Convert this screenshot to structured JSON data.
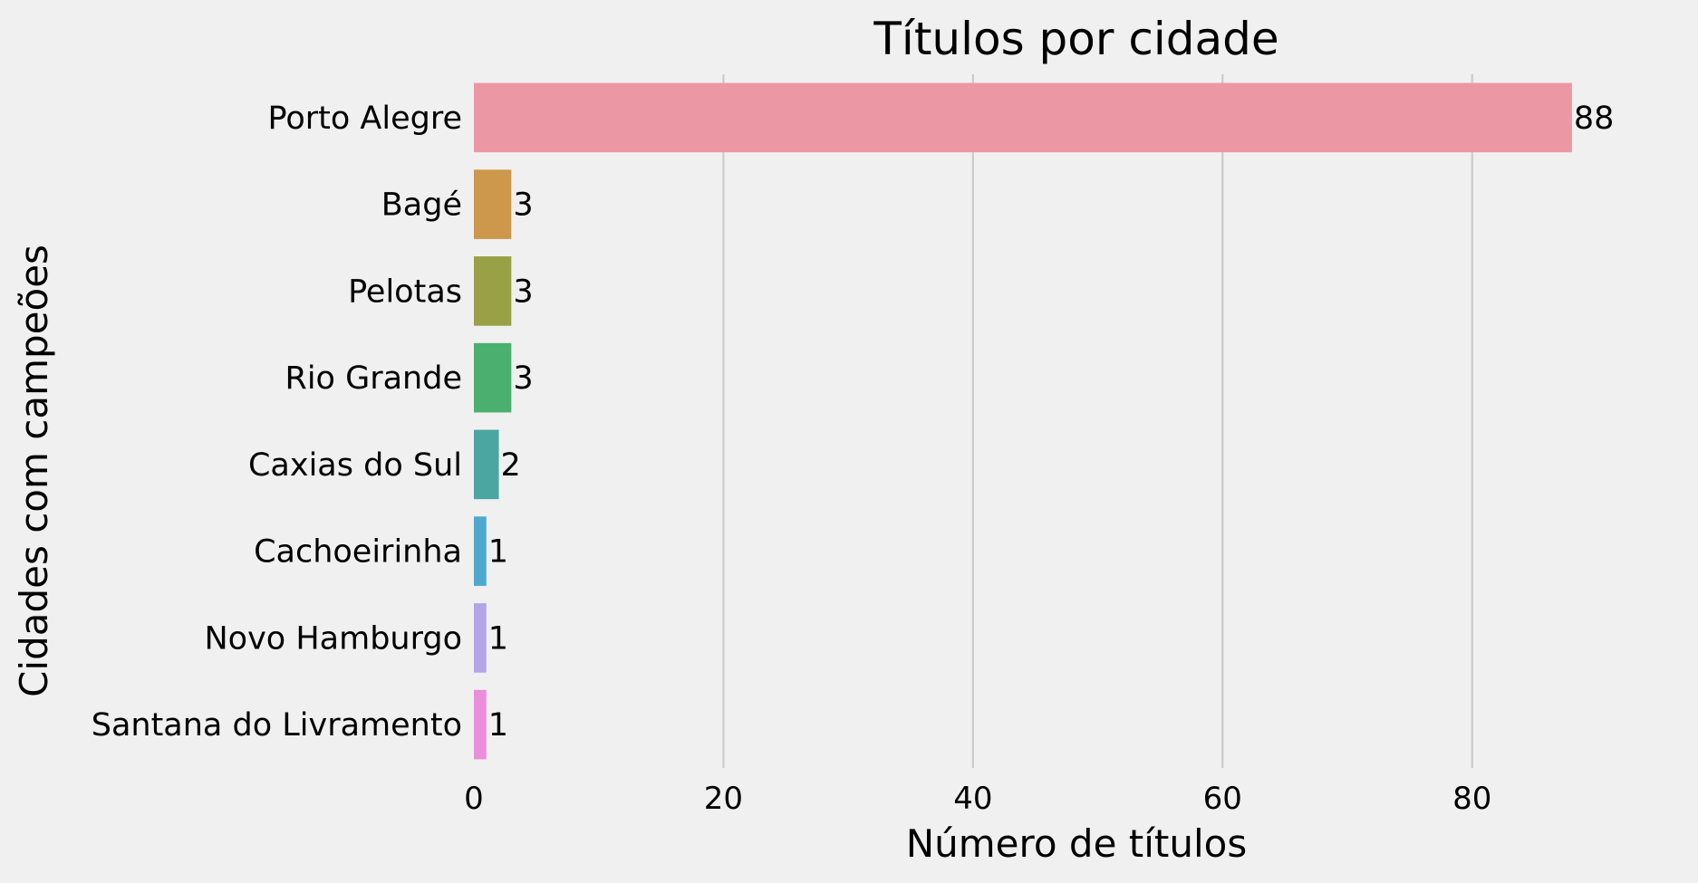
{
  "chart_data": {
    "type": "bar",
    "orientation": "horizontal",
    "title": "Títulos por cidade",
    "xlabel": "Número de títulos",
    "ylabel": "Cidades com campeões",
    "categories": [
      "Porto Alegre",
      "Bagé",
      "Pelotas",
      "Rio Grande",
      "Caxias do Sul",
      "Cachoeirinha",
      "Novo Hamburgo",
      "Santana do Livramento"
    ],
    "values": [
      88,
      3,
      3,
      3,
      2,
      1,
      1,
      1
    ],
    "value_labels": [
      "88",
      "3",
      "3",
      "3",
      "2",
      "1",
      "1",
      "1"
    ],
    "colors": [
      "#ec97a4",
      "#cd974c",
      "#98a145",
      "#4bb06f",
      "#4ba6a2",
      "#4fa9cf",
      "#b3a5e6",
      "#ea8edc"
    ],
    "xlim": [
      0,
      92
    ],
    "xticks": [
      0,
      20,
      40,
      60,
      80
    ],
    "xtick_labels": [
      "0",
      "20",
      "40",
      "60",
      "80"
    ],
    "grid": "vertical",
    "legend": "none",
    "background": "#f0f0f0"
  }
}
